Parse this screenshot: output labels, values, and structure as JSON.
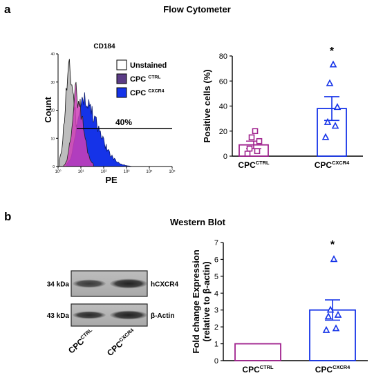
{
  "panel_a": {
    "letter": "a",
    "heading": "Flow Cytometer",
    "histogram": {
      "marker": "CD184",
      "ylabel": "Count",
      "xlabel": "PE",
      "yticks": [
        "0",
        "10",
        "20",
        "30",
        "40"
      ],
      "xticks": [
        "10⁰",
        "10¹",
        "10²",
        "10³",
        "10⁴",
        "10⁵"
      ],
      "gate_label": "40%",
      "legend": [
        {
          "main": "Unstained",
          "sup": "",
          "color": "#ffffff"
        },
        {
          "main": "CPC ",
          "sup": "CTRL",
          "color": "#5b3c86"
        },
        {
          "main": "CPC ",
          "sup": "CXCR4",
          "color": "#1533e8"
        }
      ],
      "colors": {
        "unstained": "#bdbdbd",
        "ctrl": "#cc3fb6",
        "cxcr4": "#1533e8"
      }
    }
  },
  "panel_b": {
    "letter": "b",
    "heading": "Western Blot",
    "blot": {
      "rows": [
        {
          "kda": "34 kDa",
          "band": "hCXCR4"
        },
        {
          "kda": "43 kDa",
          "band": "β-Actin"
        }
      ],
      "lanes": [
        {
          "main": "CPC",
          "sup": "CTRL"
        },
        {
          "main": "CPC",
          "sup": "CXCR4"
        }
      ]
    }
  },
  "chart_data": [
    {
      "type": "bar",
      "ylabel": "Positive cells (%)",
      "ylim": [
        0,
        80
      ],
      "yticks": [
        0,
        20,
        40,
        60,
        80
      ],
      "categories": [
        {
          "main": "CPC",
          "sup": "CTRL"
        },
        {
          "main": "CPC",
          "sup": "CXCR4"
        }
      ],
      "values": [
        9,
        38
      ],
      "sem": [
        3,
        9.5
      ],
      "points": [
        [
          2,
          4,
          6,
          12,
          15,
          20
        ],
        [
          15,
          24,
          27,
          39,
          58,
          73
        ]
      ],
      "marker": [
        "square",
        "triangle"
      ],
      "colors": [
        "#a0228e",
        "#1533e8"
      ],
      "significance": [
        "",
        "*"
      ]
    },
    {
      "type": "bar",
      "ylabel_lines": [
        "Fold change Expression",
        "(relative to β-actin)"
      ],
      "ylim": [
        0,
        7
      ],
      "yticks": [
        0,
        1,
        2,
        3,
        4,
        5,
        6,
        7
      ],
      "categories": [
        {
          "main": "CPC",
          "sup": "CTRL"
        },
        {
          "main": "CPC",
          "sup": "CXCR4"
        }
      ],
      "values": [
        1,
        3
      ],
      "sem": [
        0,
        0.6
      ],
      "points": [
        [],
        [
          1.8,
          1.9,
          2.6,
          2.7,
          3.0,
          6.0
        ]
      ],
      "marker": [
        "square",
        "triangle"
      ],
      "colors": [
        "#a0228e",
        "#1533e8"
      ],
      "significance": [
        "",
        "*"
      ]
    }
  ]
}
